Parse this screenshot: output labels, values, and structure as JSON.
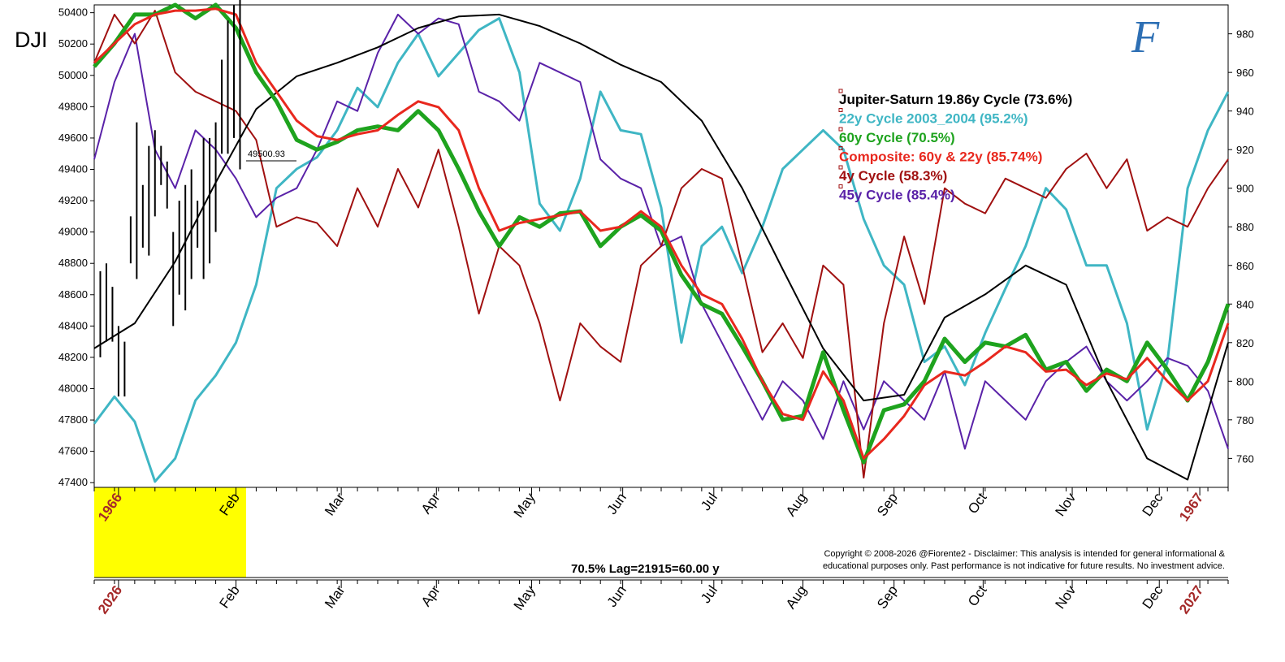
{
  "symbol": "DJI",
  "lag_label": "70.5% Lag=21915=60.00 y",
  "copyright_line1": "Copyright © 2008-2026 @Fiorente2 - Disclaimer: This analysis is intended for general informational &",
  "copyright_line2": "educational purposes only. Past performance is not indicative for future results. No investment advice.",
  "logo_text": "F",
  "price_marker_label": "49500.93",
  "colors": {
    "jupiter_saturn": "#000000",
    "cycle22": "#3fb6c4",
    "cycle60": "#1ea31e",
    "composite": "#e8281e",
    "cycle4": "#a01010",
    "cycle45": "#5a22a8",
    "highlight": "#ffff00",
    "year_label": "#a52a2a"
  },
  "chart_data": {
    "type": "line",
    "x_axis_top": {
      "year_start": "1966",
      "months": [
        "Feb",
        "Mar",
        "Apr",
        "May",
        "Jun",
        "Jul",
        "Aug",
        "Sep",
        "Oct",
        "Nov",
        "Dec"
      ],
      "year_end": "1967"
    },
    "x_axis_bottom": {
      "year_start": "2026",
      "months": [
        "Feb",
        "Mar",
        "Apr",
        "May",
        "Jun",
        "Jul",
        "Aug",
        "Sep",
        "Oct",
        "Nov",
        "Dec"
      ],
      "year_end": "2027"
    },
    "left_axis": {
      "ticks": [
        47400,
        47600,
        47800,
        48000,
        48200,
        48400,
        48600,
        48800,
        49000,
        49200,
        49400,
        49600,
        49800,
        50000,
        50200,
        50400
      ],
      "ylim": [
        47370,
        50450
      ]
    },
    "right_axis": {
      "ticks": [
        760,
        780,
        800,
        820,
        840,
        860,
        880,
        900,
        920,
        940,
        960,
        980
      ],
      "ylim": [
        745,
        995
      ]
    },
    "x_range_weeks": [
      0,
      56
    ],
    "series": [
      {
        "name": "Jupiter-Saturn 19.86y Cycle (73.6%)",
        "axis": "right",
        "color": "#000000",
        "width": 2,
        "x": [
          0,
          2,
          4,
          6,
          8,
          10,
          12,
          14,
          16,
          18,
          20,
          22,
          24,
          26,
          28,
          30,
          32,
          34,
          36,
          38,
          40,
          42,
          44,
          46,
          48,
          50,
          52,
          54,
          56
        ],
        "y": [
          817,
          830,
          862,
          903,
          941,
          958,
          965,
          973,
          983,
          989,
          990,
          984,
          975,
          964,
          955,
          935,
          900,
          858,
          817,
          790,
          793,
          833,
          845,
          860,
          850,
          800,
          760,
          749,
          820
        ]
      },
      {
        "name": "22y Cycle 2003_2004 (95.2%)",
        "axis": "right",
        "color": "#3fb6c4",
        "width": 3,
        "x": [
          0,
          1,
          2,
          3,
          4,
          5,
          6,
          7,
          8,
          9,
          10,
          11,
          12,
          13,
          14,
          15,
          16,
          17,
          18,
          19,
          20,
          21,
          22,
          23,
          24,
          25,
          26,
          27,
          28,
          29,
          30,
          31,
          32,
          33,
          34,
          35,
          36,
          37,
          38,
          39,
          40,
          41,
          42,
          43,
          44,
          45,
          46,
          47,
          48,
          49,
          50,
          51,
          52,
          53,
          54,
          55,
          56
        ],
        "y": [
          778,
          792,
          779,
          748,
          760,
          790,
          803,
          820,
          850,
          900,
          910,
          916,
          930,
          952,
          942,
          965,
          980,
          958,
          970,
          982,
          988,
          960,
          892,
          878,
          905,
          950,
          930,
          928,
          890,
          820,
          870,
          880,
          856,
          880,
          910,
          920,
          930,
          920,
          884,
          860,
          850,
          810,
          818,
          798,
          825,
          848,
          870,
          900,
          889,
          860,
          860,
          830,
          775,
          810,
          900,
          930,
          950
        ]
      },
      {
        "name": "60y Cycle (70.5%)",
        "axis": "right",
        "color": "#1ea31e",
        "width": 5,
        "x": [
          0,
          1,
          2,
          3,
          4,
          5,
          6,
          7,
          8,
          9,
          10,
          11,
          12,
          13,
          14,
          15,
          16,
          17,
          18,
          19,
          20,
          21,
          22,
          23,
          24,
          25,
          26,
          27,
          28,
          29,
          30,
          31,
          32,
          33,
          34,
          35,
          36,
          37,
          38,
          39,
          40,
          41,
          42,
          43,
          44,
          45,
          46,
          47,
          48,
          49,
          50,
          51,
          52,
          53,
          54,
          55,
          56
        ],
        "y": [
          963,
          975,
          990,
          990,
          995,
          988,
          995,
          983,
          960,
          945,
          925,
          920,
          924,
          930,
          932,
          930,
          940,
          930,
          910,
          888,
          870,
          885,
          880,
          887,
          888,
          870,
          880,
          886,
          878,
          855,
          840,
          835,
          818,
          800,
          780,
          782,
          815,
          785,
          758,
          785,
          788,
          800,
          822,
          810,
          820,
          818,
          824,
          806,
          810,
          795,
          806,
          800,
          820,
          806,
          790,
          810,
          840
        ]
      },
      {
        "name": "Composite: 60y & 22y (85.74%)",
        "axis": "right",
        "color": "#e8281e",
        "width": 3,
        "x": [
          0,
          1,
          2,
          3,
          4,
          5,
          6,
          7,
          8,
          9,
          10,
          11,
          12,
          13,
          14,
          15,
          16,
          17,
          18,
          19,
          20,
          21,
          22,
          23,
          24,
          25,
          26,
          27,
          28,
          29,
          30,
          31,
          32,
          33,
          34,
          35,
          36,
          37,
          38,
          39,
          40,
          41,
          42,
          43,
          44,
          45,
          46,
          47,
          48,
          49,
          50,
          51,
          52,
          53,
          54,
          55,
          56
        ],
        "y": [
          965,
          975,
          985,
          990,
          992,
          992,
          993,
          990,
          965,
          950,
          935,
          927,
          925,
          928,
          930,
          938,
          945,
          942,
          930,
          900,
          878,
          882,
          884,
          886,
          888,
          878,
          880,
          888,
          880,
          860,
          845,
          840,
          822,
          800,
          783,
          780,
          805,
          790,
          760,
          770,
          782,
          798,
          805,
          803,
          810,
          818,
          815,
          805,
          806,
          798,
          804,
          801,
          812,
          800,
          790,
          800,
          830
        ]
      },
      {
        "name": "4y Cycle (58.3%)",
        "axis": "right",
        "color": "#a01010",
        "width": 2,
        "x": [
          0,
          1,
          2,
          3,
          4,
          5,
          6,
          7,
          8,
          9,
          10,
          11,
          12,
          13,
          14,
          15,
          16,
          17,
          18,
          19,
          20,
          21,
          22,
          23,
          24,
          25,
          26,
          27,
          28,
          29,
          30,
          31,
          32,
          33,
          34,
          35,
          36,
          37,
          38,
          39,
          40,
          41,
          42,
          43,
          44,
          45,
          46,
          47,
          48,
          49,
          50,
          51,
          52,
          53,
          54,
          55,
          56
        ],
        "y": [
          965,
          990,
          975,
          992,
          960,
          950,
          945,
          940,
          925,
          880,
          885,
          882,
          870,
          900,
          880,
          910,
          890,
          920,
          880,
          835,
          870,
          860,
          830,
          790,
          830,
          818,
          810,
          860,
          870,
          900,
          910,
          905,
          860,
          815,
          830,
          812,
          860,
          850,
          750,
          830,
          875,
          840,
          900,
          892,
          887,
          905,
          900,
          895,
          910,
          918,
          900,
          915,
          878,
          885,
          880,
          900,
          915
        ]
      },
      {
        "name": "45y Cycle (85.4%)",
        "axis": "right",
        "color": "#5a22a8",
        "width": 2,
        "x": [
          0,
          1,
          2,
          3,
          4,
          5,
          6,
          7,
          8,
          9,
          10,
          11,
          12,
          13,
          14,
          15,
          16,
          17,
          18,
          19,
          20,
          21,
          22,
          23,
          24,
          25,
          26,
          27,
          28,
          29,
          30,
          31,
          32,
          33,
          34,
          35,
          36,
          37,
          38,
          39,
          40,
          41,
          42,
          43,
          44,
          45,
          46,
          47,
          48,
          49,
          50,
          51,
          52,
          53,
          54,
          55,
          56
        ],
        "y": [
          915,
          955,
          980,
          920,
          900,
          930,
          920,
          905,
          885,
          895,
          900,
          920,
          945,
          940,
          970,
          990,
          980,
          988,
          985,
          950,
          945,
          935,
          965,
          960,
          955,
          915,
          905,
          900,
          870,
          875,
          840,
          820,
          800,
          780,
          800,
          790,
          770,
          800,
          775,
          800,
          790,
          780,
          805,
          765,
          800,
          790,
          780,
          800,
          810,
          818,
          800,
          790,
          800,
          812,
          808,
          795,
          765
        ]
      }
    ],
    "price_bars": {
      "name": "DJI",
      "axis": "left",
      "color": "#000000",
      "x": [
        0.3,
        0.6,
        0.9,
        1.2,
        1.5,
        1.8,
        2.1,
        2.4,
        2.7,
        3.0,
        3.3,
        3.6,
        3.9,
        4.2,
        4.5,
        4.8,
        5.1,
        5.4,
        5.7,
        6.0,
        6.3,
        6.6,
        6.9,
        7.2
      ],
      "high": [
        48750,
        48800,
        48650,
        48400,
        48300,
        49100,
        49700,
        49300,
        49550,
        49650,
        49550,
        49450,
        49000,
        49200,
        49300,
        49400,
        49200,
        49600,
        49600,
        49700,
        50100,
        50350,
        50450,
        50550
      ],
      "low": [
        48200,
        48300,
        48300,
        47950,
        47950,
        48800,
        48700,
        48900,
        48850,
        49100,
        49300,
        49150,
        48400,
        48600,
        48500,
        48700,
        48900,
        48700,
        48800,
        49000,
        49500,
        49500,
        49600,
        49400
      ],
      "marker_value": 49500.93
    },
    "legend_placement": "top-right",
    "grid": false
  }
}
